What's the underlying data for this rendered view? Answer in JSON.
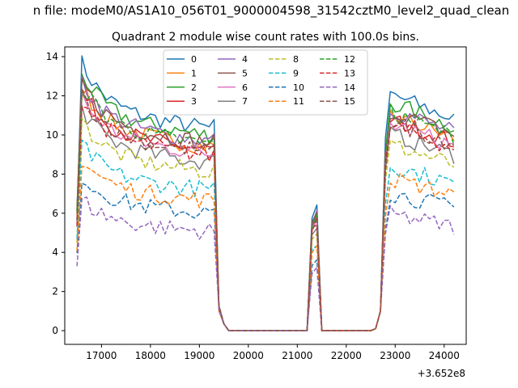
{
  "chart_data": {
    "type": "line",
    "suptitle": "n file: modeM0/AS1A10_056T01_9000004598_31542cztM0_level2_quad_clean",
    "title": "Quadrant 2 module wise count rates with 100.0s bins.",
    "xlabel": "",
    "ylabel": "",
    "x_offset_label": "+3.652e8",
    "xlim": [
      16250,
      24450
    ],
    "ylim": [
      -0.7,
      14.5
    ],
    "xticks": [
      17000,
      18000,
      19000,
      20000,
      21000,
      22000,
      23000,
      24000
    ],
    "xtick_labels": [
      "17000",
      "18000",
      "19000",
      "20000",
      "21000",
      "22000",
      "23000",
      "24000"
    ],
    "yticks": [
      0,
      2,
      4,
      6,
      8,
      10,
      12,
      14
    ],
    "ytick_labels": [
      "0",
      "2",
      "4",
      "6",
      "8",
      "10",
      "12",
      "14"
    ],
    "grid": false,
    "legend": {
      "location": "top-center",
      "columns": 4
    },
    "series": [
      {
        "name": "0",
        "color": "#1f77b4",
        "dash": "solid",
        "level": 11.2
      },
      {
        "name": "1",
        "color": "#ff7f0e",
        "dash": "solid",
        "level": 10.2
      },
      {
        "name": "2",
        "color": "#2ca02c",
        "dash": "solid",
        "level": 10.8
      },
      {
        "name": "3",
        "color": "#d62728",
        "dash": "solid",
        "level": 10.0
      },
      {
        "name": "4",
        "color": "#9467bd",
        "dash": "solid",
        "level": 10.5
      },
      {
        "name": "5",
        "color": "#8c564b",
        "dash": "solid",
        "level": 10.4
      },
      {
        "name": "6",
        "color": "#e377c2",
        "dash": "solid",
        "level": 9.8
      },
      {
        "name": "7",
        "color": "#7f7f7f",
        "dash": "solid",
        "level": 9.3
      },
      {
        "name": "8",
        "color": "#bcbd22",
        "dash": "dashed",
        "level": 8.8
      },
      {
        "name": "9",
        "color": "#17becf",
        "dash": "dashed",
        "level": 7.8
      },
      {
        "name": "10",
        "color": "#1f77b4",
        "dash": "dashed",
        "level": 6.5
      },
      {
        "name": "11",
        "color": "#ff7f0e",
        "dash": "dashed",
        "level": 7.2
      },
      {
        "name": "12",
        "color": "#2ca02c",
        "dash": "dashed",
        "level": 10.3
      },
      {
        "name": "13",
        "color": "#d62728",
        "dash": "dashed",
        "level": 9.7
      },
      {
        "name": "14",
        "color": "#9467bd",
        "dash": "dashed",
        "level": 5.5
      },
      {
        "name": "15",
        "color": "#8c564b",
        "dash": "dashed",
        "level": 9.9
      }
    ]
  }
}
